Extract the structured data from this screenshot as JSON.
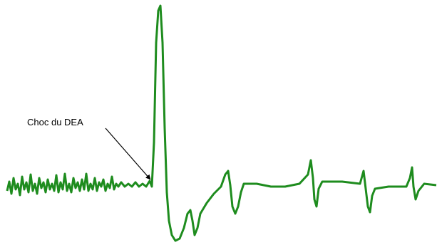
{
  "annotation": {
    "label": "Choc du DEA"
  }
}
